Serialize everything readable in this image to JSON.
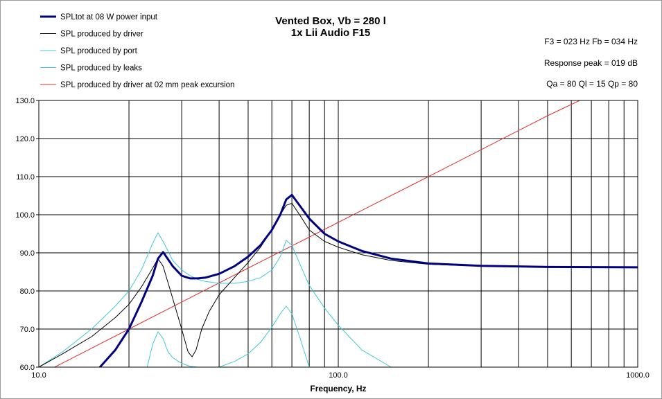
{
  "chart_data": {
    "type": "line",
    "title": "Vented Box, Vb = 280 l",
    "subtitle": "1x Lii Audio F15",
    "xlabel": "Frequency, Hz",
    "ylabel": "",
    "x_scale": "log",
    "xlim": [
      10,
      1000
    ],
    "ylim": [
      60,
      130
    ],
    "x_tick_labels": [
      {
        "value": 10,
        "label": "10.0"
      },
      {
        "value": 100,
        "label": "100.0"
      },
      {
        "value": 1000,
        "label": "1000.0"
      }
    ],
    "y_tick_labels": [
      {
        "value": 60,
        "label": "60.0"
      },
      {
        "value": 70,
        "label": "70.0"
      },
      {
        "value": 80,
        "label": "80.0"
      },
      {
        "value": 90,
        "label": "90.0"
      },
      {
        "value": 100,
        "label": "100.0"
      },
      {
        "value": 110,
        "label": "110.0"
      },
      {
        "value": 120,
        "label": "120.0"
      },
      {
        "value": 130,
        "label": "130.0"
      }
    ],
    "grid": true,
    "legend_position": "top-left",
    "annotations": [
      "F3 = 023 Hz  Fb = 034 Hz",
      "Response  peak = 019 dB",
      "Qa = 80  Ql = 15  Qp = 80"
    ],
    "series": [
      {
        "name": "SPLtot at 08 W power input",
        "color": "#000080",
        "width": 3,
        "x": [
          16,
          18,
          20,
          22,
          24,
          25,
          26,
          28,
          30,
          32,
          34,
          36,
          40,
          45,
          50,
          55,
          60,
          64,
          67,
          70,
          75,
          80,
          90,
          100,
          120,
          150,
          200,
          300,
          500,
          1000
        ],
        "y": [
          60,
          64.5,
          70,
          77,
          84,
          88.5,
          90.2,
          86.5,
          84,
          83.3,
          83.3,
          83.5,
          84.5,
          86.5,
          89,
          92,
          96,
          100,
          104,
          105.2,
          102,
          99,
          95,
          93,
          90.5,
          88.5,
          87.2,
          86.6,
          86.3,
          86.2
        ]
      },
      {
        "name": "SPL produced by driver",
        "color": "#000000",
        "width": 1,
        "x": [
          10,
          12,
          15,
          18,
          20,
          22,
          24,
          25,
          26,
          28,
          30,
          31.5,
          32.5,
          33.5,
          35,
          37,
          40,
          45,
          50,
          55,
          60,
          64,
          67,
          70,
          75,
          80,
          90,
          100,
          120,
          150,
          200,
          300,
          500,
          1000
        ],
        "y": [
          60,
          63.5,
          68,
          73,
          76.5,
          81,
          86,
          88.5,
          86.5,
          78,
          70,
          64,
          62.7,
          64.5,
          70,
          74.5,
          79,
          83.5,
          87.5,
          91.5,
          96,
          100,
          102.5,
          103,
          99.5,
          96,
          93,
          91.5,
          89.5,
          88,
          87,
          86.5,
          86.2,
          86.1
        ]
      },
      {
        "name": "SPL produced by port",
        "color": "#40C8D8",
        "width": 1,
        "x": [
          10,
          12,
          15,
          18,
          20,
          22,
          24,
          25,
          26,
          28,
          30,
          32,
          34,
          36,
          40,
          45,
          50,
          55,
          60,
          64,
          67,
          70,
          75,
          80,
          90,
          100,
          120,
          150
        ],
        "y": [
          60,
          64,
          70,
          76,
          80,
          85.5,
          92.5,
          95.3,
          93,
          88,
          85.5,
          84,
          83,
          82.5,
          82,
          82,
          82.5,
          83.5,
          85.5,
          89,
          93.3,
          92,
          86.5,
          81.5,
          75.5,
          71,
          64.5,
          60
        ]
      },
      {
        "name": "SPL produced by leaks",
        "color": "#40C8D8",
        "width": 1,
        "x": [
          23,
          24,
          25,
          26,
          27,
          28,
          30,
          32,
          34,
          38,
          40,
          45,
          50,
          55,
          60,
          64,
          67,
          70,
          75,
          80
        ],
        "y": [
          60,
          66,
          69.3,
          67.5,
          64,
          62.5,
          61,
          60.2,
          60,
          60,
          60,
          61.5,
          63.5,
          66.5,
          70.5,
          74,
          76,
          74,
          67,
          60
        ]
      },
      {
        "name": "SPL produced by driver at 02 mm peak excursion",
        "color": "#E03030",
        "width": 1,
        "x": [
          11.3,
          20,
          50,
          100,
          200,
          500,
          640
        ],
        "y": [
          60,
          70,
          86,
          98,
          110,
          126,
          130
        ]
      }
    ]
  }
}
